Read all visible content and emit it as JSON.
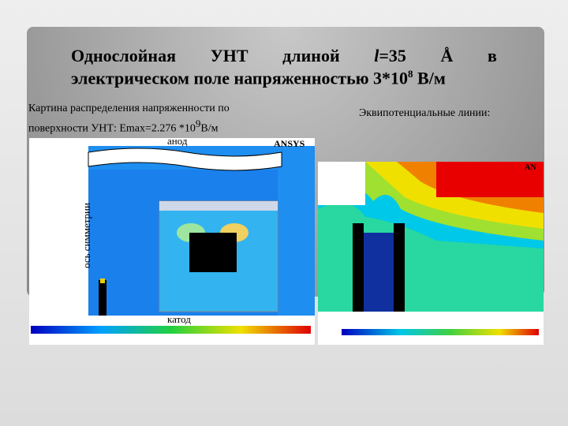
{
  "title": {
    "line1": [
      "Однослойная",
      "УНТ",
      "длиной",
      "l",
      "=35",
      "Å",
      "в"
    ],
    "line2": {
      "text": "электрическом поле напряженностью 3*10",
      "sup": "8",
      "unit": " В/м"
    }
  },
  "left": {
    "caption1": "Картина распределения напряженности по",
    "caption2": "поверхности УНТ: Emax=2.276 *10",
    "caption2_sup": "9",
    "caption2_unit": "В/м",
    "anode": "анод",
    "cathode": "катод",
    "axis": "ось симметрии",
    "logo": "ANSYS"
  },
  "right": {
    "caption": "Эквипотенциальные линии:",
    "logo": "AN"
  }
}
